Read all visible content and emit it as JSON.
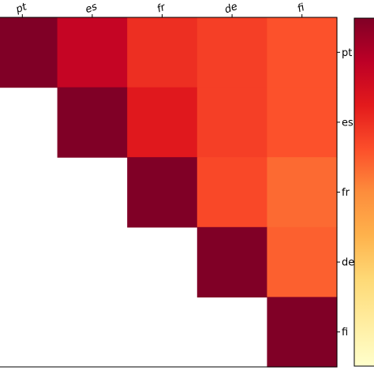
{
  "chart_data": {
    "type": "heatmap",
    "x_labels": [
      "pt",
      "es",
      "fr",
      "de",
      "fi"
    ],
    "y_labels": [
      "pt",
      "es",
      "fr",
      "de",
      "fi"
    ],
    "values": [
      [
        1.0,
        0.85,
        0.7,
        0.66,
        0.62
      ],
      [
        null,
        1.0,
        0.76,
        0.66,
        0.62
      ],
      [
        null,
        null,
        1.0,
        0.64,
        0.57
      ],
      [
        null,
        null,
        null,
        1.0,
        0.59
      ],
      [
        null,
        null,
        null,
        null,
        1.0
      ]
    ],
    "mask": "upper-triangle",
    "colormap": "YlOrRd",
    "colormap_stops": [
      "#ffffcc",
      "#ffeda0",
      "#fed976",
      "#feb24c",
      "#fd8d3c",
      "#fc4e2a",
      "#e31a1c",
      "#bd0026",
      "#800026"
    ],
    "vmin": 0.0,
    "vmax": 1.0,
    "x_tick_position": "top",
    "y_tick_position": "right",
    "colorbar": "right",
    "grid": false
  }
}
